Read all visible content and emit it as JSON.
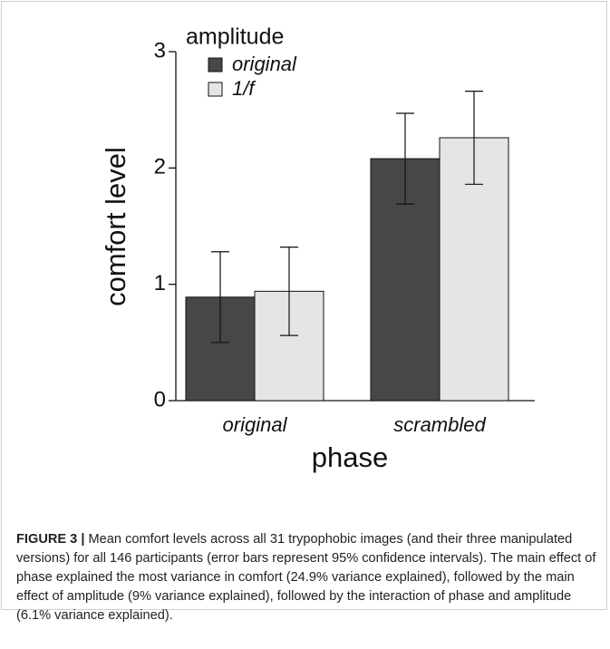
{
  "chart_data": {
    "type": "bar",
    "ylabel": "comfort level",
    "xlabel": "phase",
    "legend_title": "amplitude",
    "categories": [
      "original",
      "scrambled"
    ],
    "series": [
      {
        "name": "original",
        "color": "#474747",
        "values": [
          0.89,
          2.08
        ],
        "errors": [
          0.39,
          0.39
        ]
      },
      {
        "name": "1/f",
        "color": "#e5e5e5",
        "values": [
          0.94,
          2.26
        ],
        "errors": [
          0.38,
          0.4
        ]
      }
    ],
    "ylim": [
      0,
      3
    ],
    "yticks": [
      0,
      1,
      2,
      3
    ]
  },
  "caption": {
    "label": "FIGURE 3 |",
    "text": "Mean comfort levels across all 31 trypophobic images (and their three manipulated versions) for all 146 participants (error bars represent 95% confidence intervals). The main effect of phase explained the most variance in comfort (24.9% variance explained), followed by the main effect of amplitude (9% variance explained), followed by the interaction of phase and amplitude (6.1% variance explained)."
  }
}
